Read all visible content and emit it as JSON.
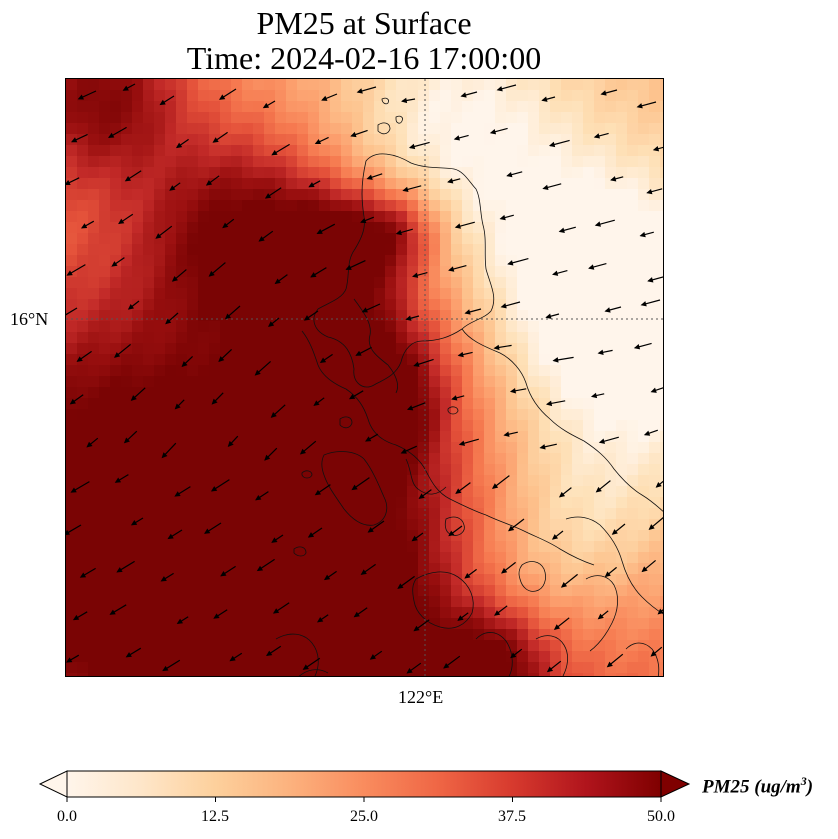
{
  "title": {
    "line1": "PM25 at Surface",
    "line2": "Time: 2024-02-16 17:00:00"
  },
  "map": {
    "lat_tick_label": "16°N",
    "lon_tick_label": "122°E",
    "colormap": [
      "#fff5eb",
      "#fee0b6",
      "#fdc48f",
      "#fca06e",
      "#f67a50",
      "#e4513a",
      "#c22a28",
      "#990f0f",
      "#7a0404"
    ],
    "gridline_color": "#555555",
    "coastline_color": "#111111"
  },
  "colorbar": {
    "ticks": [
      "0.0",
      "12.5",
      "25.0",
      "37.5",
      "50.0"
    ],
    "label_main": "PM25 (ug/m",
    "label_sup": "3",
    "label_close": ")",
    "min": 0,
    "max": 50
  }
}
